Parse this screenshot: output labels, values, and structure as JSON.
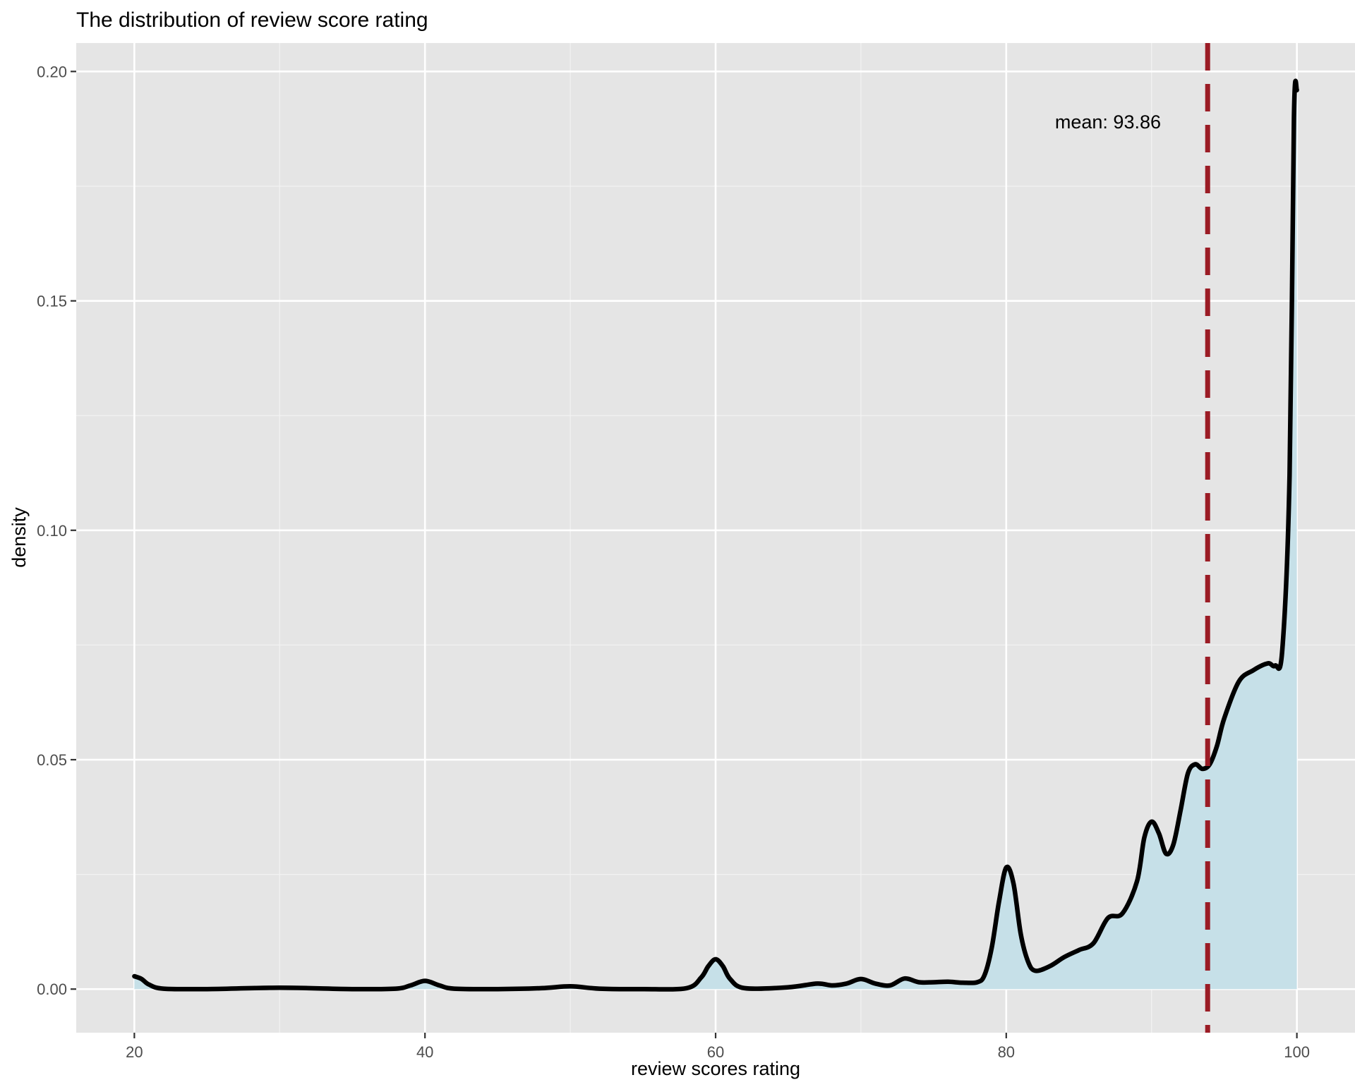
{
  "chart_data": {
    "type": "area",
    "title": "The distribution of review score rating",
    "xlabel": "review scores rating",
    "ylabel": "density",
    "xlim": [
      16,
      104
    ],
    "ylim": [
      -0.0095,
      0.2062
    ],
    "x_ticks": [
      20,
      40,
      60,
      80,
      100
    ],
    "y_ticks": [
      0.0,
      0.05,
      0.1,
      0.15,
      0.2
    ],
    "x_tick_labels": [
      "20",
      "40",
      "60",
      "80",
      "100"
    ],
    "y_tick_labels": [
      "0.00",
      "0.05",
      "0.10",
      "0.15",
      "0.20"
    ],
    "grid": true,
    "fill_color": "#c6e0e8",
    "line_color": "#000000",
    "mean": 93.86,
    "mean_line_color": "#9b1c25",
    "annotation": {
      "text": "mean: 93.86",
      "x": 87,
      "y": 0.189
    },
    "series": [
      {
        "x": [
          20,
          20.5,
          21,
          22,
          25,
          30,
          35,
          38,
          39,
          40,
          41,
          42,
          45,
          48,
          50,
          52,
          55,
          58,
          59,
          59.5,
          60,
          60.5,
          61,
          62,
          65,
          67,
          68,
          69,
          70,
          71,
          72,
          73,
          74,
          75,
          76,
          77,
          78,
          78.5,
          79,
          79.5,
          80,
          80.5,
          81,
          81.5,
          82,
          83,
          84,
          85,
          86,
          87,
          88,
          89,
          89.5,
          90,
          90.5,
          91,
          91.5,
          92,
          92.5,
          93,
          93.5,
          94,
          94.5,
          95,
          96,
          97,
          98,
          98.5,
          99,
          99.5,
          99.8,
          100
        ],
        "y": [
          0.0028,
          0.0022,
          0.001,
          0.0001,
          0.0,
          0.0003,
          0.0,
          0.0001,
          0.0008,
          0.0018,
          0.0008,
          0.0001,
          0.0,
          0.0002,
          0.0006,
          0.0001,
          0.0,
          0.0002,
          0.0025,
          0.005,
          0.0065,
          0.005,
          0.0022,
          0.0002,
          0.0004,
          0.0012,
          0.0008,
          0.0012,
          0.0022,
          0.0012,
          0.0008,
          0.0023,
          0.0015,
          0.0015,
          0.0016,
          0.0014,
          0.0015,
          0.003,
          0.009,
          0.019,
          0.0265,
          0.023,
          0.012,
          0.006,
          0.004,
          0.005,
          0.007,
          0.0085,
          0.01,
          0.0155,
          0.0165,
          0.0235,
          0.033,
          0.0365,
          0.034,
          0.0295,
          0.0315,
          0.039,
          0.047,
          0.049,
          0.048,
          0.049,
          0.053,
          0.059,
          0.067,
          0.0695,
          0.071,
          0.0705,
          0.074,
          0.112,
          0.19,
          0.196
        ]
      }
    ]
  }
}
